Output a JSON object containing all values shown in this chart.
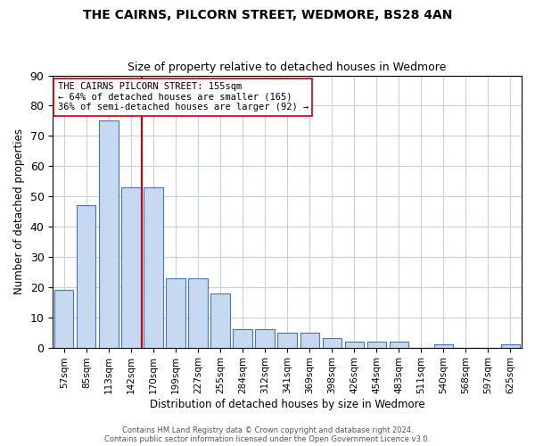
{
  "title1": "THE CAIRNS, PILCORN STREET, WEDMORE, BS28 4AN",
  "title2": "Size of property relative to detached houses in Wedmore",
  "xlabel": "Distribution of detached houses by size in Wedmore",
  "ylabel": "Number of detached properties",
  "bar_values": [
    19,
    47,
    75,
    53,
    53,
    23,
    23,
    18,
    6,
    6,
    5,
    5,
    3,
    2,
    2,
    2,
    0,
    1,
    0,
    0,
    1
  ],
  "x_tick_labels": [
    "57sqm",
    "85sqm",
    "113sqm",
    "142sqm",
    "170sqm",
    "199sqm",
    "227sqm",
    "255sqm",
    "284sqm",
    "312sqm",
    "341sqm",
    "369sqm",
    "398sqm",
    "426sqm",
    "454sqm",
    "483sqm",
    "511sqm",
    "540sqm",
    "568sqm",
    "597sqm",
    "625sqm"
  ],
  "bar_color": "#c6d9f0",
  "bar_edge_color": "#4472c4",
  "red_line_color": "#cc0000",
  "ylim": [
    0,
    90
  ],
  "yticks": [
    0,
    10,
    20,
    30,
    40,
    50,
    60,
    70,
    80,
    90
  ],
  "annotation_line1": "THE CAIRNS PILCORN STREET: 155sqm",
  "annotation_line2": "← 64% of detached houses are smaller (165)",
  "annotation_line3": "36% of semi-detached houses are larger (92) →",
  "annotation_box_color": "#ffffff",
  "annotation_box_edge": "#cc0000",
  "footer1": "Contains HM Land Registry data © Crown copyright and database right 2024.",
  "footer2": "Contains public sector information licensed under the Open Government Licence v3.0.",
  "background_color": "#ffffff",
  "grid_color": "#c8d0e0"
}
